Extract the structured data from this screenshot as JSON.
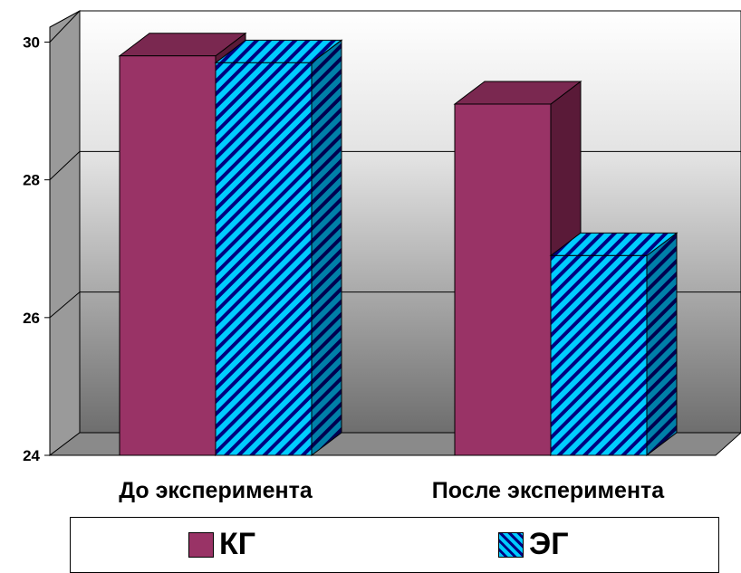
{
  "chart_data": {
    "type": "bar",
    "categories": [
      "До эксперимента",
      "После эксперимента"
    ],
    "series": [
      {
        "name": "КГ",
        "values": [
          29.8,
          29.1
        ],
        "color": "#993366",
        "pattern": "solid"
      },
      {
        "name": "ЭГ",
        "values": [
          29.7,
          26.9
        ],
        "color": "#00CCFF",
        "pattern": "diagonal-stripes-navy"
      }
    ],
    "yticks": [
      24,
      26,
      28,
      30
    ],
    "ylim": [
      24,
      30
    ],
    "grid": true,
    "style": "3d-clustered-column",
    "legend_position": "bottom"
  }
}
